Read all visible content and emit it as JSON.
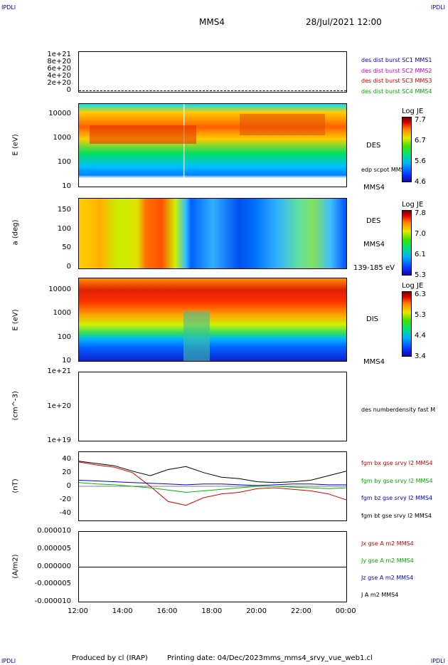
{
  "header": {
    "title": "MMS4",
    "datetime": "28/Jul/2021 12:00",
    "corner_label": "IPDLI"
  },
  "footer": {
    "produced_by": "Produced by cl (IRAP)",
    "printing_date": "Printing date: 04/Dec/2023",
    "file": "mms_mms4_srvy_vue_web1.cl"
  },
  "panels": {
    "p1": {
      "yticks": [
        "1e+21",
        "8e+20",
        "6e+20",
        "4e+20",
        "2e+20",
        "0"
      ],
      "legend": [
        {
          "text": "des dist burst SC1 MMS1",
          "color": "#0000cc"
        },
        {
          "text": "des dist burst SC2 MMS2",
          "color": "#cc00cc"
        },
        {
          "text": "des dist burst SC3 MMS3",
          "color": "#cc0000"
        },
        {
          "text": "des dist burst SC4 MMS4",
          "color": "#00aa00"
        }
      ]
    },
    "p2": {
      "ylabel": "E (eV)",
      "yticks": [
        "10000",
        "1000",
        "100",
        "10"
      ],
      "side_label": "DES",
      "side_label2": "edp scpot MMS4",
      "bottom_label": "MMS4",
      "cbar_title": "Log JE",
      "cbar_ticks": [
        "7.7",
        "6.7",
        "5.6",
        "4.6"
      ]
    },
    "p3": {
      "ylabel": "a (deg)",
      "yticks": [
        "150",
        "100",
        "50",
        "0"
      ],
      "side_label": "DES",
      "side_label2": "MMS4",
      "bottom_label": "139-185 eV",
      "cbar_title": "Log JE",
      "cbar_ticks": [
        "7.8",
        "7.0",
        "6.1",
        "5.3"
      ]
    },
    "p4": {
      "ylabel": "E (eV)",
      "yticks": [
        "10000",
        "1000",
        "100",
        "10"
      ],
      "side_label": "DIS",
      "bottom_label": "MMS4",
      "cbar_title": "Log JE",
      "cbar_ticks": [
        "6.3",
        "5.3",
        "4.4",
        "3.4"
      ]
    },
    "p5": {
      "ylabel": "(cm^-3)",
      "yticks": [
        "1e+21",
        "1e+20",
        "1e+19"
      ],
      "legend": [
        {
          "text": "des numberdensity fast M",
          "color": "#000000"
        }
      ]
    },
    "p6": {
      "ylabel": "(nT)",
      "yticks": [
        "40",
        "20",
        "0",
        "-20",
        "-40"
      ],
      "legend": [
        {
          "text": "fgm bx gse srvy l2 MMS4",
          "color": "#cc0000"
        },
        {
          "text": "fgm by gse srvy l2 MMS4",
          "color": "#00aa00"
        },
        {
          "text": "fgm bz gse srvy l2 MMS4",
          "color": "#0000cc"
        },
        {
          "text": "fgm bt gse srvy l2 MMS4",
          "color": "#000000"
        }
      ]
    },
    "p7": {
      "ylabel": "(A/m2)",
      "yticks": [
        "0.000010",
        "0.000005",
        "0.000000",
        "-0.000005",
        "-0.000010"
      ],
      "legend": [
        {
          "text": "Jx gse A m2 MMS4",
          "color": "#cc0000"
        },
        {
          "text": "Jy gse A m2 MMS4",
          "color": "#00aa00"
        },
        {
          "text": "Jz gse A m2 MMS4",
          "color": "#0000cc"
        },
        {
          "text": "J A m2 MMS4",
          "color": "#000000"
        }
      ]
    }
  },
  "xticks": [
    "12:00",
    "14:00",
    "16:00",
    "18:00",
    "20:00",
    "22:00",
    "00:00"
  ],
  "chart_data": [
    {
      "type": "line",
      "x": [
        "12:00",
        "13:00",
        "14:00",
        "15:00",
        "15:30",
        "16:00",
        "16:30",
        "17:00",
        "17:30",
        "18:00",
        "19:00",
        "20:00",
        "21:00",
        "22:00",
        "23:00",
        "00:00"
      ],
      "series": [
        {
          "name": "fgm bx gse srvy l2 MMS4",
          "values": [
            32,
            28,
            25,
            18,
            0,
            -20,
            -25,
            -15,
            -10,
            -8,
            -3,
            -2,
            -4,
            -6,
            -10,
            -18
          ]
        },
        {
          "name": "fgm by gse srvy l2 MMS4",
          "values": [
            5,
            3,
            2,
            0,
            -2,
            -5,
            -8,
            -6,
            -4,
            -2,
            0,
            0,
            -1,
            -2,
            -3,
            -2
          ]
        },
        {
          "name": "fgm bz gse srvy l2 MMS4",
          "values": [
            8,
            7,
            6,
            5,
            4,
            3,
            2,
            3,
            3,
            2,
            1,
            2,
            3,
            3,
            2,
            2
          ]
        },
        {
          "name": "fgm bt gse srvy l2 MMS4",
          "values": [
            33,
            30,
            27,
            20,
            14,
            22,
            26,
            18,
            12,
            10,
            6,
            5,
            6,
            8,
            14,
            20
          ]
        }
      ],
      "ylim": [
        -45,
        45
      ]
    }
  ]
}
